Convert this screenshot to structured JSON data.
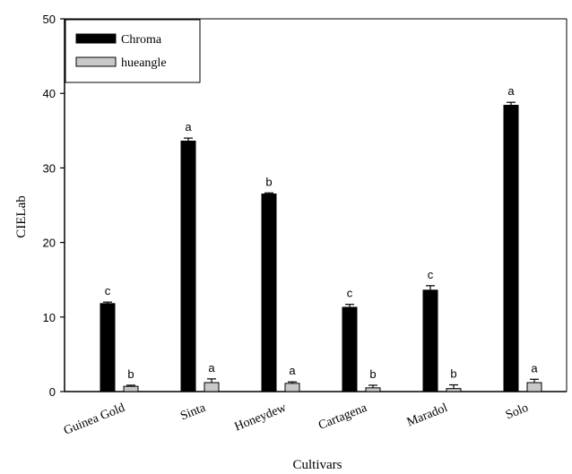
{
  "chart_data": {
    "type": "bar",
    "title": "",
    "xlabel": "Cultivars",
    "ylabel": "CIELab",
    "ylim": [
      0,
      50
    ],
    "yticks": [
      0,
      10,
      20,
      30,
      40,
      50
    ],
    "grid": false,
    "legend_position": "top-left",
    "categories": [
      "Guinea Gold",
      "Sinta",
      "Honeydew",
      "Cartagena",
      "Maradol",
      "Solo"
    ],
    "series": [
      {
        "name": "Chroma",
        "color": "#000000",
        "values": [
          11.8,
          33.6,
          26.5,
          11.3,
          13.6,
          38.4
        ],
        "errors": [
          0.2,
          0.4,
          0.15,
          0.4,
          0.6,
          0.4
        ],
        "significance": [
          "c",
          "a",
          "b",
          "c",
          "c",
          "a"
        ]
      },
      {
        "name": "hueangle",
        "color": "#c8c8c8",
        "values": [
          0.7,
          1.2,
          1.1,
          0.5,
          0.4,
          1.2
        ],
        "errors": [
          0.15,
          0.5,
          0.2,
          0.35,
          0.5,
          0.45
        ],
        "significance": [
          "b",
          "a",
          "a",
          "b",
          "b",
          "a"
        ]
      }
    ]
  }
}
